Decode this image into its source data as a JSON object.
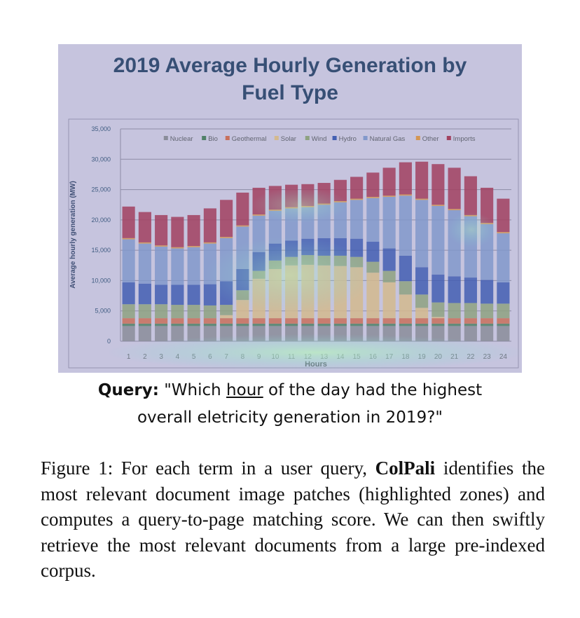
{
  "figure": {
    "chart_data": {
      "type": "bar",
      "stacked": true,
      "title": "2019 Average Hourly Generation by Fuel Type",
      "xlabel": "Hours",
      "ylabel": "Average hourly generation (MW)",
      "ylim": [
        0,
        35000
      ],
      "yticks": [
        0,
        5000,
        10000,
        15000,
        20000,
        25000,
        30000,
        35000
      ],
      "ytick_labels": [
        "0",
        "5,000",
        "10,000",
        "15,000",
        "20,000",
        "25,000",
        "30,000",
        "35,000"
      ],
      "grid": true,
      "legend_position": "top",
      "categories": [
        "1",
        "2",
        "3",
        "4",
        "5",
        "6",
        "7",
        "8",
        "9",
        "10",
        "11",
        "12",
        "13",
        "14",
        "15",
        "16",
        "17",
        "18",
        "19",
        "20",
        "21",
        "22",
        "23",
        "24"
      ],
      "series": [
        {
          "name": "Nuclear",
          "color": "#8a8a8a",
          "values": [
            2500,
            2500,
            2500,
            2500,
            2500,
            2500,
            2500,
            2500,
            2500,
            2500,
            2500,
            2500,
            2500,
            2500,
            2500,
            2500,
            2500,
            2500,
            2500,
            2500,
            2500,
            2500,
            2500,
            2500
          ]
        },
        {
          "name": "Bio",
          "color": "#3f7a4a",
          "values": [
            400,
            400,
            400,
            400,
            400,
            400,
            400,
            400,
            400,
            400,
            400,
            400,
            400,
            400,
            400,
            400,
            400,
            400,
            400,
            400,
            400,
            400,
            400,
            400
          ]
        },
        {
          "name": "Geothermal",
          "color": "#d9643a",
          "values": [
            900,
            900,
            900,
            900,
            900,
            900,
            900,
            900,
            900,
            900,
            900,
            900,
            900,
            900,
            900,
            900,
            900,
            900,
            900,
            900,
            900,
            900,
            900,
            900
          ]
        },
        {
          "name": "Solar",
          "color": "#e8c27a",
          "values": [
            0,
            0,
            0,
            0,
            0,
            0,
            500,
            3000,
            6500,
            8100,
            8700,
            8800,
            8700,
            8600,
            8400,
            7500,
            5900,
            3900,
            1700,
            200,
            0,
            0,
            0,
            0
          ]
        },
        {
          "name": "Wind",
          "color": "#8fa56a",
          "values": [
            2300,
            2300,
            2300,
            2200,
            2200,
            2100,
            1700,
            1600,
            1300,
            1400,
            1400,
            1600,
            1600,
            1700,
            1700,
            1800,
            1900,
            2200,
            2200,
            2400,
            2500,
            2500,
            2400,
            2400
          ]
        },
        {
          "name": "Hydro",
          "color": "#2f4fa8",
          "values": [
            3600,
            3400,
            3200,
            3300,
            3300,
            3500,
            3900,
            3500,
            3100,
            2800,
            2700,
            2700,
            2900,
            2900,
            3000,
            3300,
            3700,
            4200,
            4500,
            4600,
            4400,
            4200,
            3900,
            3500
          ]
        },
        {
          "name": "Natural Gas",
          "color": "#7f98c8",
          "values": [
            7100,
            6600,
            6300,
            6000,
            6200,
            6700,
            7100,
            7000,
            6000,
            5400,
            5300,
            5200,
            5500,
            5900,
            6400,
            7200,
            8500,
            9900,
            11100,
            11300,
            10900,
            10100,
            9200,
            8100
          ]
        },
        {
          "name": "Other",
          "color": "#e8952f",
          "values": [
            200,
            200,
            200,
            200,
            200,
            200,
            200,
            200,
            200,
            200,
            200,
            200,
            200,
            200,
            200,
            200,
            200,
            200,
            200,
            200,
            200,
            200,
            200,
            200
          ]
        },
        {
          "name": "Imports",
          "color": "#a8283f",
          "values": [
            5200,
            5000,
            5000,
            5000,
            5100,
            5600,
            6100,
            5400,
            4400,
            3900,
            3700,
            3600,
            3400,
            3500,
            3600,
            4000,
            4600,
            5300,
            6100,
            6700,
            6800,
            6400,
            5800,
            5500
          ]
        }
      ]
    }
  },
  "query": {
    "label": "Query:",
    "text_before": "\"Which ",
    "highlighted_term": "hour",
    "text_after_line1": " of the day had the highest",
    "line2": "overall eletricity generation in 2019?\""
  },
  "caption": {
    "prefix": "Figure 1: For each term in a user query, ",
    "model": "ColPali",
    "text": " identifies the most relevant document image patches (highlighted zones) and computes a query-to-page matching score. We can then swiftly retrieve the most relevant documents from a large pre-indexed corpus."
  }
}
